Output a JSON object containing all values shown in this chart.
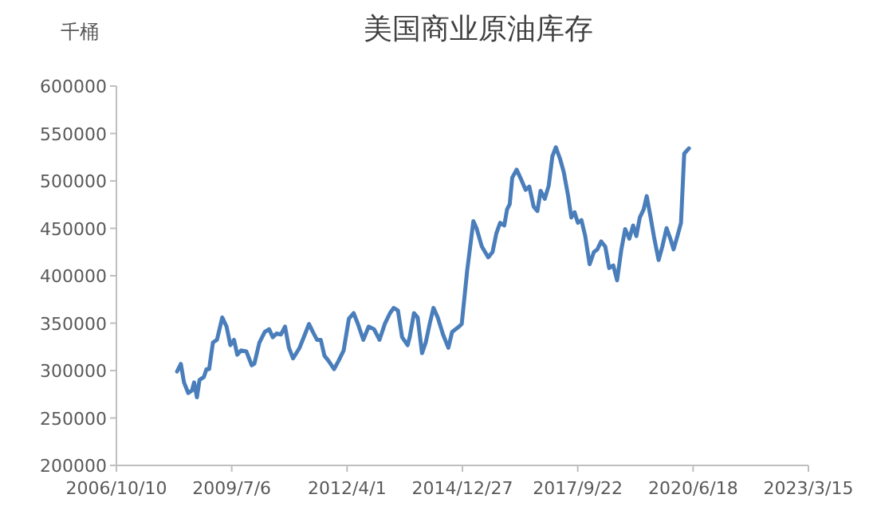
{
  "chart_data": {
    "type": "line",
    "title": "美国商业原油库存",
    "ylabel": "千桶",
    "xlim": [
      "2006-10-10",
      "2023-03-15"
    ],
    "xticks": [
      {
        "value": "2006-10-10",
        "label": "2006/10/10"
      },
      {
        "value": "2009-07-06",
        "label": "2009/7/6"
      },
      {
        "value": "2012-04-01",
        "label": "2012/4/1"
      },
      {
        "value": "2014-12-27",
        "label": "2014/12/27"
      },
      {
        "value": "2017-09-22",
        "label": "2017/9/22"
      },
      {
        "value": "2020-06-18",
        "label": "2020/6/18"
      },
      {
        "value": "2023-03-15",
        "label": "2023/3/15"
      }
    ],
    "ylim": [
      200000,
      600000
    ],
    "yticks": [
      200000,
      250000,
      300000,
      350000,
      400000,
      450000,
      500000,
      550000,
      600000
    ],
    "x": [
      "2008-03-19",
      "2008-04-21",
      "2008-05-18",
      "2008-06-24",
      "2008-07-26",
      "2008-08-14",
      "2008-09-07",
      "2008-09-30",
      "2008-11-06",
      "2008-11-29",
      "2008-12-22",
      "2009-01-24",
      "2009-02-28",
      "2009-04-15",
      "2009-05-22",
      "2009-06-24",
      "2009-07-26",
      "2009-08-23",
      "2009-09-24",
      "2009-11-10",
      "2009-12-26",
      "2010-01-18",
      "2010-03-03",
      "2010-04-19",
      "2010-05-26",
      "2010-06-27",
      "2010-07-29",
      "2010-09-05",
      "2010-10-11",
      "2010-11-14",
      "2010-12-20",
      "2011-02-14",
      "2011-04-01",
      "2011-05-07",
      "2011-06-09",
      "2011-07-15",
      "2011-08-17",
      "2011-09-18",
      "2011-10-25",
      "2011-12-10",
      "2012-01-17",
      "2012-03-02",
      "2012-04-17",
      "2012-05-28",
      "2012-07-04",
      "2012-08-20",
      "2012-10-05",
      "2012-11-21",
      "2013-01-07",
      "2013-02-22",
      "2013-04-08",
      "2013-05-10",
      "2013-06-16",
      "2013-07-22",
      "2013-09-08",
      "2013-09-26",
      "2013-11-02",
      "2013-12-04",
      "2014-01-11",
      "2014-02-12",
      "2014-03-18",
      "2014-04-20",
      "2014-05-27",
      "2014-07-12",
      "2014-08-27",
      "2014-09-29",
      "2014-11-28",
      "2014-12-21",
      "2015-02-06",
      "2015-04-01",
      "2015-04-28",
      "2015-06-14",
      "2015-08-08",
      "2015-09-14",
      "2015-10-17",
      "2015-11-19",
      "2015-12-25",
      "2016-01-18",
      "2016-02-10",
      "2016-03-03",
      "2016-04-10",
      "2016-05-12",
      "2016-06-27",
      "2016-07-29",
      "2016-09-05",
      "2016-10-07",
      "2016-11-04",
      "2016-12-10",
      "2017-01-13",
      "2017-02-14",
      "2017-03-16",
      "2017-04-22",
      "2017-05-24",
      "2017-07-01",
      "2017-07-28",
      "2017-08-25",
      "2017-09-23",
      "2017-10-24",
      "2017-11-26",
      "2018-01-03",
      "2018-02-09",
      "2018-03-11",
      "2018-04-13",
      "2018-05-19",
      "2018-06-21",
      "2018-07-27",
      "2018-08-29",
      "2018-10-05",
      "2018-11-07",
      "2018-12-13",
      "2019-01-15",
      "2019-02-12",
      "2019-03-14",
      "2019-04-16",
      "2019-05-13",
      "2019-06-16",
      "2019-07-18",
      "2019-08-24",
      "2019-09-25",
      "2019-11-01",
      "2019-12-04",
      "2020-01-01",
      "2020-02-03",
      "2020-03-05",
      "2020-04-02",
      "2020-05-13"
    ],
    "series": [
      {
        "color": "#4a7ebb",
        "values": [
          299000,
          307000,
          287500,
          276300,
          279100,
          287500,
          271800,
          290300,
          293100,
          301500,
          301500,
          329600,
          332400,
          356000,
          346400,
          326800,
          332400,
          316700,
          321200,
          320100,
          305500,
          307200,
          329600,
          340800,
          343600,
          335200,
          339100,
          338000,
          346400,
          324000,
          312800,
          324000,
          338000,
          349200,
          340800,
          332400,
          332400,
          315600,
          310000,
          301500,
          310000,
          321200,
          354800,
          360500,
          349200,
          332400,
          346400,
          343600,
          332400,
          349200,
          360500,
          366100,
          363300,
          335200,
          326800,
          335200,
          360500,
          356000,
          318400,
          329600,
          349200,
          366100,
          356000,
          338000,
          324000,
          340800,
          346400,
          349200,
          405300,
          457500,
          450200,
          430600,
          419400,
          425000,
          444600,
          455800,
          453000,
          469800,
          475500,
          503500,
          511900,
          503500,
          490600,
          494000,
          472700,
          468200,
          489500,
          481100,
          495100,
          525900,
          535500,
          523100,
          509100,
          483900,
          461400,
          467000,
          455800,
          458600,
          441800,
          412100,
          425000,
          427800,
          436200,
          430600,
          408100,
          410900,
          395200,
          427800,
          449100,
          439000,
          453000,
          441800,
          461400,
          469800,
          483900,
          461400,
          439000,
          416600,
          430600,
          450200,
          439000,
          427800,
          441800,
          455800,
          528800,
          534400
        ]
      }
    ]
  }
}
